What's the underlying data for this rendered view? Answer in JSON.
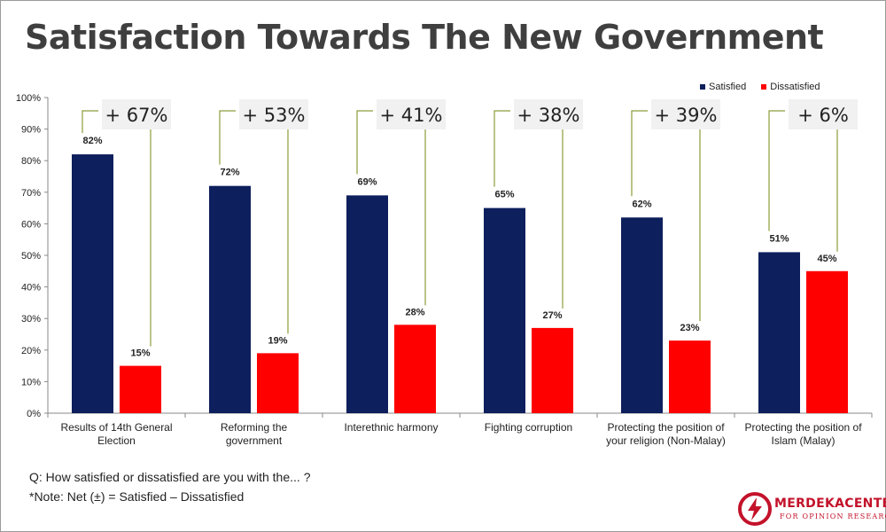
{
  "title": "Satisfaction Towards The New Government",
  "footnotes": {
    "question": "Q: How satisfied or dissatisfied are you with the... ?",
    "note": "*Note: Net (±) = Satisfied – Dissatisfied"
  },
  "logo": {
    "name": "MERDEKACENTER",
    "subtitle": "FOR OPINION RESEARCH"
  },
  "chart_data": {
    "type": "bar",
    "categories": [
      [
        "Results of 14th General",
        "Election"
      ],
      [
        "Reforming the",
        "government"
      ],
      [
        "Interethnic harmony"
      ],
      [
        "Fighting corruption"
      ],
      [
        "Protecting the position of",
        "your religion (Non-Malay)"
      ],
      [
        "Protecting the position of",
        "Islam (Malay)"
      ]
    ],
    "series": [
      {
        "name": "Satisfied",
        "color": "#0d1f5c",
        "values": [
          82,
          72,
          69,
          65,
          62,
          51
        ],
        "labels": [
          "82%",
          "72%",
          "69%",
          "65%",
          "62%",
          "51%"
        ]
      },
      {
        "name": "Dissatisfied",
        "color": "#ff0000",
        "values": [
          15,
          19,
          28,
          27,
          23,
          45
        ],
        "labels": [
          "15%",
          "19%",
          "28%",
          "27%",
          "23%",
          "45%"
        ]
      }
    ],
    "net_labels": [
      "+ 67%",
      "+ 53%",
      "+ 41%",
      "+ 38%",
      "+ 39%",
      "+ 6%"
    ],
    "y_ticks": [
      "0%",
      "10%",
      "20%",
      "30%",
      "40%",
      "50%",
      "60%",
      "70%",
      "80%",
      "90%",
      "100%"
    ],
    "ylim": [
      0,
      100
    ],
    "legend_position": "top-right",
    "grid": false
  }
}
